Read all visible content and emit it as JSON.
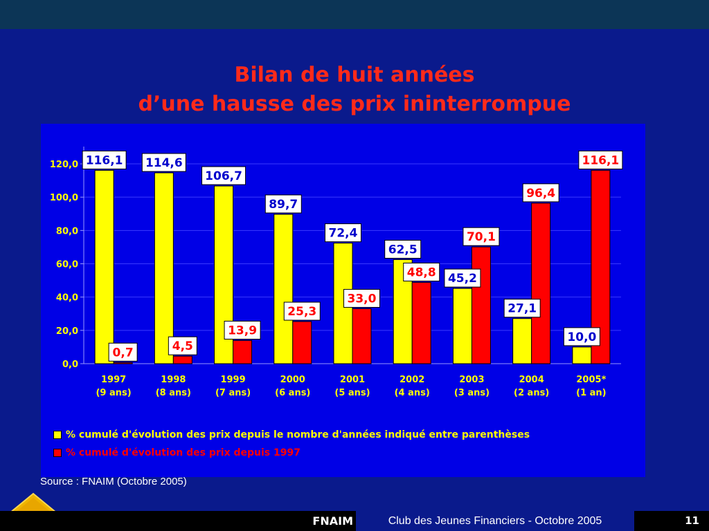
{
  "slide": {
    "title_line1": "Bilan de huit années",
    "title_line2": "d’une hausse des prix ininterrompue",
    "source": "Source : FNAIM (Octobre 2005)",
    "footer_brand": "FNAIM",
    "footer_event": "Club des Jeunes Financiers - Octobre 2005",
    "page_number": "11",
    "logo_text": "FNAIM",
    "colors": {
      "background": "#0a1a8c",
      "chart_background": "#0000e6",
      "title": "#ff2a1a"
    }
  },
  "chart_data": {
    "type": "bar",
    "categories": [
      "1997\n(9 ans)",
      "1998\n(8 ans)",
      "1999\n(7 ans)",
      "2000\n(6 ans)",
      "2001\n(5 ans)",
      "2002\n(4 ans)",
      "2003\n(3 ans)",
      "2004\n(2 ans)",
      "2005*\n(1 an)"
    ],
    "series": [
      {
        "name": "% cumulé d'évolution des prix depuis le nombre d'années indiqué entre parenthèses",
        "color": "#ffff00",
        "values": [
          116.1,
          114.6,
          106.7,
          89.7,
          72.4,
          62.5,
          45.2,
          27.1,
          10.0
        ],
        "labels": [
          "116,1",
          "114,6",
          "106,7",
          "89,7",
          "72,4",
          "62,5",
          "45,2",
          "27,1",
          "10,0"
        ],
        "label_color": "#0000cc"
      },
      {
        "name": "% cumulé d'évolution des prix depuis 1997",
        "color": "#ff0000",
        "values": [
          0.7,
          4.5,
          13.9,
          25.3,
          33.0,
          48.8,
          70.1,
          96.4,
          116.1
        ],
        "labels": [
          "0,7",
          "4,5",
          "13,9",
          "25,3",
          "33,0",
          "48,8",
          "70,1",
          "96,4",
          "116,1"
        ],
        "label_color": "#ff0000"
      }
    ],
    "yticks": [
      "0,0",
      "20,0",
      "40,0",
      "60,0",
      "80,0",
      "100,0",
      "120,0"
    ],
    "ylim": [
      0,
      120
    ],
    "grid": true,
    "legend_position": "bottom-left"
  }
}
